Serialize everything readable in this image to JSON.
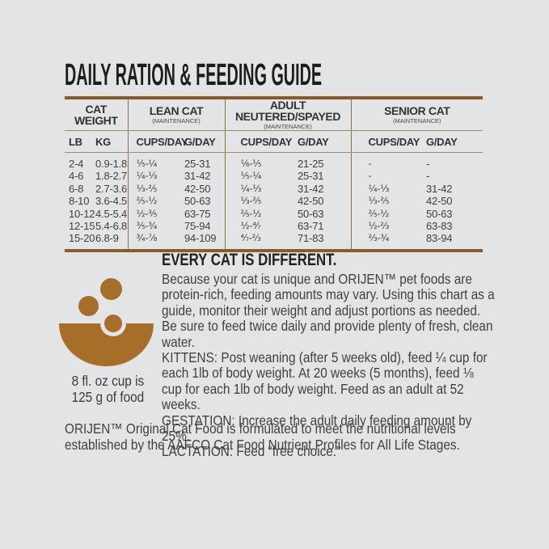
{
  "colors": {
    "background": "#E3E4E6",
    "accent_brown": "#A76E2A",
    "rule_thick_brown": "#8A5A28",
    "rule_thin_taupe": "#9D8A68",
    "text": "#3B3B3B"
  },
  "title": "DAILY RATION & FEEDING GUIDE",
  "table": {
    "groups": [
      {
        "label": "CAT\nWEIGHT",
        "sub": ""
      },
      {
        "label": "LEAN CAT",
        "sub": "(MAINTENANCE)"
      },
      {
        "label": "ADULT NEUTERED/SPAYED",
        "sub": "(MAINTENANCE)"
      },
      {
        "label": "SENIOR CAT",
        "sub": "(MAINTENANCE)"
      }
    ],
    "columns": [
      "LB",
      "KG",
      "CUPS/DAY",
      "G/DAY",
      "CUPS/DAY",
      "G/DAY",
      "CUPS/DAY",
      "G/DAY"
    ],
    "rows": [
      [
        "2-4",
        "0.9-1.8",
        "⅕-¼",
        "25-31",
        "⅙-⅕",
        "21-25",
        "-",
        "-"
      ],
      [
        "4-6",
        "1.8-2.7",
        "¼-⅓",
        "31-42",
        "⅕-¼",
        "25-31",
        "-",
        "-"
      ],
      [
        "6-8",
        "2.7-3.6",
        "⅓-⅖",
        "42-50",
        "¼-⅓",
        "31-42",
        "¼-⅓",
        "31-42"
      ],
      [
        "8-10",
        "3.6-4.5",
        "⅖-½",
        "50-63",
        "⅓-⅖",
        "42-50",
        "⅓-⅖",
        "42-50"
      ],
      [
        "10-12",
        "4.5-5.4",
        "½-⅗",
        "63-75",
        "⅖-½",
        "50-63",
        "⅖-½",
        "50-63"
      ],
      [
        "12-15",
        "5.4-6.8",
        "⅗-¾",
        "75-94",
        "½-⁴⁄₇",
        "63-71",
        "½-⅔",
        "63-83"
      ],
      [
        "15-20",
        "6.8-9",
        "¾-⅞",
        "94-109",
        "⁴⁄₇-⅔",
        "71-83",
        "⅔-¾",
        "83-94"
      ]
    ]
  },
  "cup_note": {
    "line1": "8 fl. oz cup is",
    "line2": "125 g of food"
  },
  "info": {
    "heading": "EVERY CAT IS DIFFERENT.",
    "paragraphs": [
      "Because your cat is unique and ORIJEN™ pet foods are protein-rich, feeding amounts may vary. Using this chart as a guide, monitor their weight and adjust portions as needed. Be sure to feed twice daily and provide plenty of fresh, clean water.",
      "KITTENS: Post weaning (after 5 weeks old), feed ¼ cup for each 1lb of body weight. At 20 weeks (5 months), feed ⅛ cup for each 1lb of body weight. Feed as an adult at 52 weeks.",
      "GESTATION: Increase the adult daily feeding amount by 25%.",
      "LACTATION: Feed “free choice.”"
    ]
  },
  "footer": "ORIJEN™ Original Cat Food is formulated to meet the nutritional levels established by the AAFCO Cat Food Nutrient Profiles for All Life Stages.",
  "icons": {
    "bowl": "kibble-bowl-icon"
  }
}
